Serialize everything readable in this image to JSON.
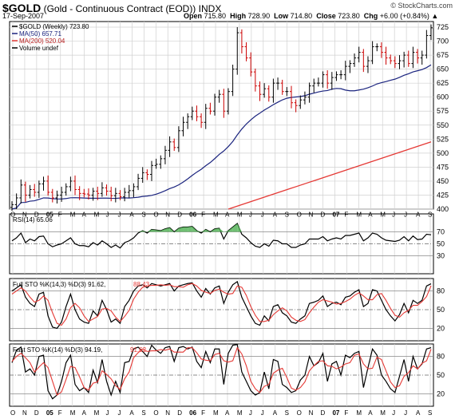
{
  "header": {
    "symbol": "$GOLD",
    "desc": "(Gold - Continuous Contract (EOD))",
    "exchange": "INDX",
    "date": "17-Sep-2007",
    "open_label": "Open",
    "open": "715.80",
    "high_label": "High",
    "high": "728.90",
    "low_label": "Low",
    "low": "714.80",
    "close_label": "Close",
    "close": "723.80",
    "chg_label": "Chg",
    "chg": "+6.00 (+0.84%)",
    "watermark": "© StockCharts.com"
  },
  "chart_data": [
    {
      "type": "ohlc",
      "panel": "price",
      "legend": [
        "$GOLD (Weekly) 723.80",
        "MA(50) 657.71",
        "MA(200) 520.04",
        "Volume undef"
      ],
      "ylim": [
        400,
        735
      ],
      "yticks": [
        400,
        425,
        450,
        475,
        500,
        525,
        550,
        575,
        600,
        625,
        650,
        675,
        700,
        725
      ],
      "x_labels": [
        "O",
        "N",
        "D",
        "05",
        "F",
        "M",
        "A",
        "M",
        "J",
        "J",
        "A",
        "S",
        "O",
        "N",
        "D",
        "06",
        "F",
        "M",
        "A",
        "M",
        "J",
        "J",
        "A",
        "S",
        "O",
        "N",
        "D",
        "07",
        "F",
        "M",
        "A",
        "M",
        "J",
        "J",
        "A",
        "S"
      ],
      "close": [
        408,
        420,
        443,
        425,
        435,
        430,
        445,
        450,
        430,
        420,
        425,
        430,
        440,
        450,
        435,
        428,
        427,
        425,
        432,
        428,
        438,
        432,
        424,
        428,
        422,
        430,
        433,
        440,
        455,
        465,
        462,
        478,
        480,
        490,
        505,
        520,
        510,
        540,
        555,
        565,
        575,
        565,
        555,
        580,
        575,
        600,
        605,
        575,
        610,
        650,
        715,
        690,
        670,
        645,
        620,
        605,
        615,
        600,
        625,
        625,
        610,
        610,
        590,
        585,
        595,
        600,
        620,
        625,
        625,
        640,
        625,
        635,
        640,
        640,
        655,
        660,
        670,
        680,
        655,
        665,
        690,
        690,
        680,
        670,
        665,
        660,
        665,
        675,
        660,
        680,
        670,
        675,
        710,
        723.8
      ],
      "ma50": [
        null,
        null,
        null,
        null,
        null,
        null,
        null,
        null,
        null,
        null,
        null,
        null,
        null,
        null,
        null,
        null,
        null,
        null,
        null,
        null,
        null,
        null,
        null,
        null,
        null,
        null,
        null,
        null,
        null,
        null,
        null,
        null,
        null,
        null,
        null,
        null,
        null,
        null,
        null,
        null,
        null,
        null,
        null,
        null,
        null,
        null,
        null,
        null,
        null,
        null,
        null,
        null,
        null,
        null,
        null,
        null,
        null,
        null,
        null,
        null,
        null,
        null,
        null,
        null,
        null,
        null,
        null,
        null,
        null,
        null,
        null,
        null,
        null,
        null,
        null,
        null,
        null,
        null,
        null,
        null,
        null,
        null,
        null,
        null,
        null,
        null,
        null,
        null,
        null,
        null,
        null,
        null,
        null,
        657.71
      ],
      "ma200_end": 520.04,
      "colors": {
        "up": "#000000",
        "down": "#cc0000",
        "ma50": "#1a237e",
        "ma200": "#e53935"
      }
    },
    {
      "type": "line",
      "panel": "rsi",
      "name": "RSI(14) 65.06",
      "ylim": [
        0,
        100
      ],
      "yticks": [
        30,
        50,
        70
      ],
      "values": [
        55,
        60,
        68,
        52,
        58,
        55,
        62,
        63,
        50,
        45,
        48,
        50,
        55,
        60,
        50,
        47,
        47,
        45,
        52,
        48,
        55,
        50,
        44,
        48,
        43,
        52,
        55,
        60,
        68,
        72,
        68,
        74,
        73,
        72,
        75,
        77,
        70,
        76,
        78,
        78,
        79,
        72,
        68,
        74,
        70,
        75,
        76,
        58,
        72,
        78,
        84,
        66,
        60,
        52,
        46,
        44,
        50,
        46,
        56,
        55,
        50,
        50,
        44,
        44,
        48,
        50,
        58,
        58,
        58,
        62,
        55,
        58,
        60,
        58,
        64,
        64,
        66,
        68,
        55,
        60,
        68,
        66,
        60,
        56,
        55,
        54,
        56,
        62,
        55,
        63,
        57,
        58,
        66,
        65.06
      ]
    },
    {
      "type": "line",
      "panel": "fullsto",
      "name": "Full STO %K(14,3) %D(3) 91.62, 88.43",
      "ylim": [
        0,
        100
      ],
      "yticks": [
        20,
        50,
        80
      ],
      "k": [
        80,
        85,
        90,
        70,
        60,
        55,
        75,
        78,
        40,
        22,
        20,
        30,
        55,
        75,
        50,
        35,
        30,
        28,
        48,
        40,
        65,
        50,
        30,
        35,
        28,
        55,
        65,
        80,
        88,
        90,
        85,
        92,
        90,
        88,
        90,
        92,
        80,
        88,
        90,
        92,
        93,
        80,
        70,
        84,
        75,
        85,
        88,
        60,
        78,
        90,
        95,
        70,
        55,
        40,
        28,
        25,
        40,
        32,
        55,
        58,
        45,
        40,
        30,
        28,
        35,
        40,
        60,
        62,
        65,
        72,
        55,
        60,
        62,
        58,
        70,
        72,
        78,
        82,
        55,
        60,
        82,
        80,
        65,
        50,
        40,
        32,
        42,
        60,
        45,
        65,
        60,
        65,
        88,
        91.62
      ],
      "d": [
        75,
        80,
        85,
        80,
        70,
        62,
        65,
        72,
        65,
        45,
        28,
        25,
        35,
        53,
        60,
        53,
        40,
        31,
        35,
        39,
        51,
        52,
        48,
        38,
        31,
        39,
        49,
        67,
        78,
        86,
        88,
        89,
        89,
        90,
        89,
        90,
        87,
        87,
        86,
        90,
        92,
        88,
        81,
        78,
        76,
        81,
        83,
        78,
        75,
        76,
        88,
        86,
        73,
        55,
        41,
        31,
        31,
        33,
        42,
        48,
        53,
        48,
        38,
        33,
        31,
        34,
        45,
        54,
        62,
        66,
        64,
        62,
        59,
        60,
        63,
        67,
        73,
        77,
        72,
        66,
        66,
        74,
        76,
        65,
        52,
        41,
        38,
        45,
        49,
        57,
        57,
        63,
        71,
        88.43
      ]
    },
    {
      "type": "line",
      "panel": "faststo",
      "name": "Fast STO %K(14) %D(3) 94.19, 91.62",
      "ylim": [
        0,
        100
      ],
      "yticks": [
        20,
        50,
        80
      ],
      "k": [
        70,
        90,
        95,
        55,
        60,
        50,
        80,
        82,
        25,
        12,
        18,
        40,
        70,
        82,
        35,
        25,
        30,
        22,
        58,
        38,
        75,
        40,
        18,
        40,
        22,
        70,
        72,
        92,
        95,
        88,
        80,
        98,
        90,
        85,
        94,
        96,
        72,
        94,
        96,
        92,
        95,
        72,
        62,
        88,
        70,
        92,
        92,
        35,
        85,
        98,
        99,
        55,
        40,
        25,
        18,
        22,
        55,
        28,
        75,
        72,
        35,
        30,
        22,
        25,
        42,
        50,
        80,
        65,
        70,
        85,
        40,
        68,
        72,
        50,
        82,
        78,
        85,
        88,
        30,
        62,
        92,
        82,
        50,
        40,
        28,
        22,
        48,
        75,
        40,
        80,
        60,
        68,
        92,
        94.19
      ],
      "d": [
        72,
        80,
        85,
        78,
        70,
        55,
        63,
        70,
        62,
        40,
        18,
        23,
        43,
        64,
        62,
        47,
        30,
        26,
        37,
        39,
        57,
        51,
        44,
        33,
        27,
        44,
        55,
        78,
        86,
        92,
        88,
        89,
        89,
        91,
        90,
        92,
        87,
        87,
        87,
        94,
        94,
        86,
        76,
        74,
        73,
        83,
        85,
        73,
        71,
        73,
        94,
        84,
        65,
        40,
        28,
        22,
        32,
        35,
        53,
        58,
        61,
        46,
        29,
        26,
        30,
        39,
        57,
        65,
        72,
        73,
        65,
        64,
        60,
        63,
        68,
        70,
        82,
        84,
        68,
        60,
        61,
        79,
        75,
        57,
        39,
        30,
        33,
        48,
        54,
        65,
        60,
        69,
        73,
        91.62
      ]
    }
  ],
  "panels": {
    "rsi_label": "RSI(14) 65.06",
    "fullsto_label": "Full STO %K(14,3) %D(3) 91.62,",
    "fullsto_label2": "88.43",
    "faststo_label": "Fast STO %K(14) %D(3) 94.19,",
    "faststo_label2": "91.62"
  }
}
